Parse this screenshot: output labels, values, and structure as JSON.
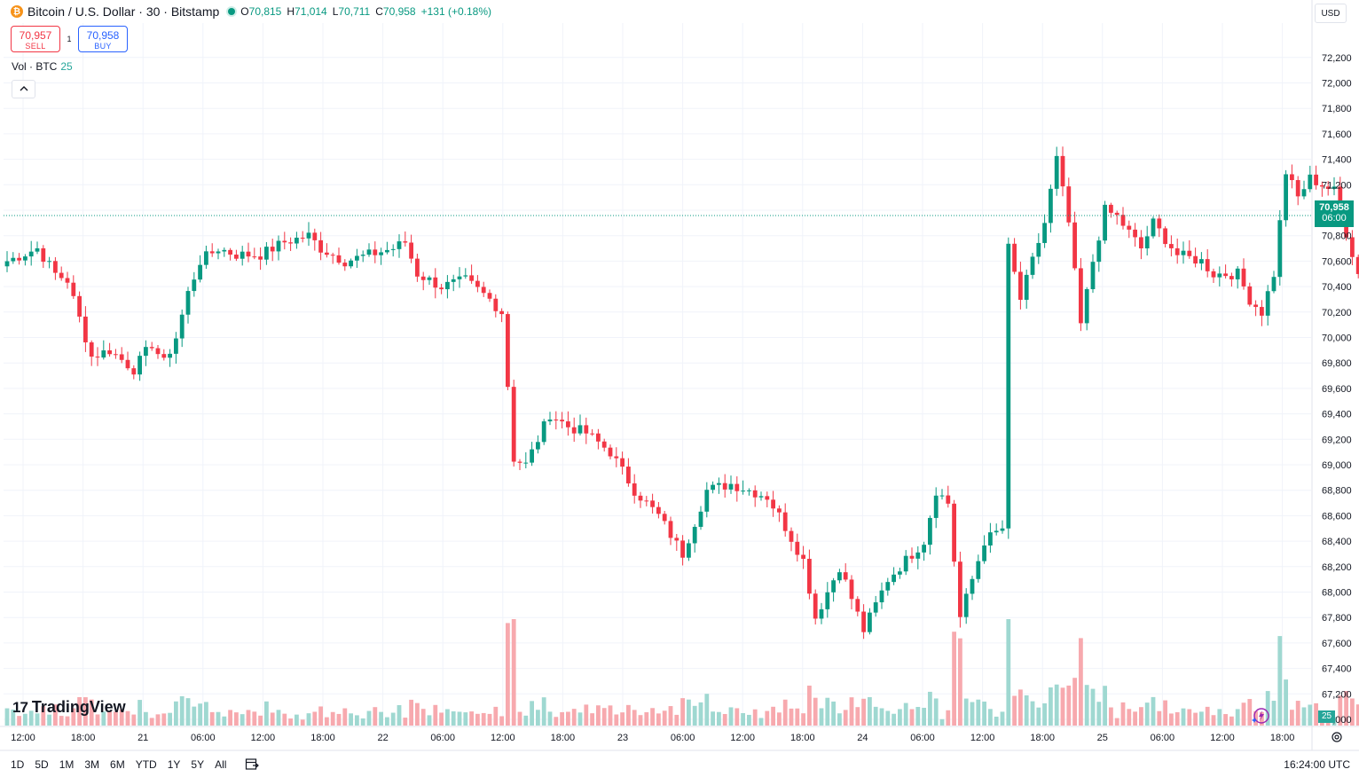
{
  "header": {
    "symbol": "Bitcoin / U.S. Dollar · 30 · Bitstamp",
    "coin_icon": "bitcoin-icon",
    "open_label": "O",
    "open": "70,815",
    "high_label": "H",
    "high": "71,014",
    "low_label": "L",
    "low": "70,711",
    "close_label": "C",
    "close": "70,958",
    "change": "+131 (+0.18%)"
  },
  "trade": {
    "sell_price": "70,957",
    "sell_label": "SELL",
    "spread": "1",
    "buy_price": "70,958",
    "buy_label": "BUY"
  },
  "volume_legend": {
    "label": "Vol · BTC",
    "value": "25"
  },
  "currency": "USD",
  "logo_text": "TradingView",
  "last_price": {
    "price": "70,958",
    "countdown": "06:00"
  },
  "volume_tag": "25",
  "bottom": {
    "ranges": [
      "1D",
      "5D",
      "1M",
      "3M",
      "6M",
      "YTD",
      "1Y",
      "5Y",
      "All"
    ],
    "clock": "16:24:00 UTC"
  },
  "colors": {
    "up": "#089981",
    "down": "#f23645",
    "vol_up": "#9fd8d1",
    "vol_down": "#f7a9ae"
  },
  "chart_data": {
    "type": "candlestick",
    "interval": "30m",
    "x_ticks": [
      "12:00",
      "18:00",
      "21",
      "06:00",
      "12:00",
      "18:00",
      "22",
      "06:00",
      "12:00",
      "18:00",
      "23",
      "06:00",
      "12:00",
      "18:00",
      "24",
      "06:00",
      "12:00",
      "18:00",
      "25",
      "06:00",
      "12:00",
      "18:00"
    ],
    "y_ticks": [
      67000,
      67200,
      67400,
      67600,
      67800,
      68000,
      68200,
      68400,
      68600,
      68800,
      69000,
      69200,
      69400,
      69600,
      69800,
      70000,
      70200,
      70400,
      70600,
      70800,
      71000,
      71200,
      71400,
      71600,
      71800,
      72000,
      72200
    ],
    "ylim": [
      66900,
      72300
    ],
    "grid": true,
    "last_price_line": 70958,
    "anchors": [
      [
        0,
        70600
      ],
      [
        5,
        70700
      ],
      [
        8,
        70500
      ],
      [
        10,
        70450
      ],
      [
        14,
        69850
      ],
      [
        17,
        69900
      ],
      [
        21,
        69750
      ],
      [
        24,
        69950
      ],
      [
        26,
        69800
      ],
      [
        28,
        70000
      ],
      [
        30,
        70350
      ],
      [
        32,
        70600
      ],
      [
        35,
        70700
      ],
      [
        38,
        70650
      ],
      [
        42,
        70650
      ],
      [
        46,
        70750
      ],
      [
        50,
        70800
      ],
      [
        52,
        70700
      ],
      [
        56,
        70600
      ],
      [
        60,
        70650
      ],
      [
        64,
        70700
      ],
      [
        66,
        70750
      ],
      [
        68,
        70500
      ],
      [
        72,
        70400
      ],
      [
        76,
        70450
      ],
      [
        80,
        70300
      ],
      [
        82,
        70200
      ],
      [
        84,
        69050
      ],
      [
        86,
        69000
      ],
      [
        90,
        69400
      ],
      [
        93,
        69300
      ],
      [
        96,
        69250
      ],
      [
        100,
        69100
      ],
      [
        104,
        68800
      ],
      [
        108,
        68600
      ],
      [
        112,
        68300
      ],
      [
        116,
        68800
      ],
      [
        120,
        68850
      ],
      [
        126,
        68750
      ],
      [
        128,
        68600
      ],
      [
        132,
        68250
      ],
      [
        134,
        67800
      ],
      [
        138,
        68200
      ],
      [
        142,
        67700
      ],
      [
        146,
        68100
      ],
      [
        150,
        68300
      ],
      [
        152,
        68400
      ],
      [
        154,
        68800
      ],
      [
        156,
        68700
      ],
      [
        158,
        67800
      ],
      [
        162,
        68400
      ],
      [
        165,
        68500
      ],
      [
        166,
        70700
      ],
      [
        168,
        70300
      ],
      [
        172,
        70900
      ],
      [
        174,
        71400
      ],
      [
        176,
        70900
      ],
      [
        178,
        70100
      ],
      [
        180,
        70600
      ],
      [
        182,
        71000
      ],
      [
        184,
        70950
      ],
      [
        188,
        70700
      ],
      [
        190,
        70900
      ],
      [
        194,
        70650
      ],
      [
        198,
        70600
      ],
      [
        200,
        70500
      ],
      [
        204,
        70500
      ],
      [
        206,
        70300
      ],
      [
        208,
        70200
      ],
      [
        210,
        70500
      ],
      [
        212,
        71300
      ],
      [
        214,
        71100
      ],
      [
        216,
        71250
      ],
      [
        220,
        71150
      ],
      [
        224,
        70500
      ],
      [
        226,
        70100
      ],
      [
        230,
        69800
      ],
      [
        232,
        69400
      ],
      [
        234,
        69200
      ],
      [
        236,
        69350
      ],
      [
        238,
        69350
      ],
      [
        240,
        70000
      ],
      [
        244,
        70300
      ],
      [
        246,
        70750
      ],
      [
        250,
        70600
      ],
      [
        254,
        70450
      ],
      [
        256,
        70700
      ],
      [
        258,
        70950
      ],
      [
        262,
        71100
      ],
      [
        264,
        71000
      ],
      [
        268,
        71300
      ],
      [
        272,
        71500
      ],
      [
        274,
        71800
      ],
      [
        276,
        71500
      ],
      [
        278,
        71500
      ],
      [
        280,
        71300
      ],
      [
        282,
        71050
      ],
      [
        284,
        70800
      ],
      [
        285,
        70958
      ]
    ]
  }
}
